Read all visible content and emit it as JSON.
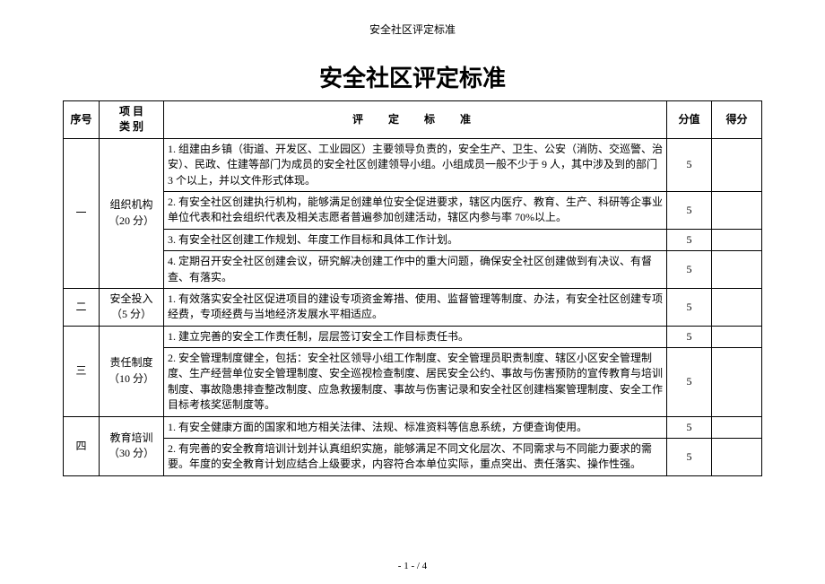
{
  "meta": {
    "small_header": "安全社区评定标准",
    "main_title": "安全社区评定标准",
    "footer": "- 1 -  / 4"
  },
  "columns": {
    "seq": "序号",
    "category_line1": "项 目",
    "category_line2": "类 别",
    "criteria": "评　定　标　准",
    "score": "分值",
    "got": "得分"
  },
  "sections": [
    {
      "seq": "一",
      "category": "组织机构（20 分）",
      "rows": [
        {
          "text": "1. 组建由乡镇（街道、开发区、工业园区）主要领导负责的，安全生产、卫生、公安（消防、交巡警、治安）、民政、住建等部门为成员的安全社区创建领导小组。小组成员一般不少于 9 人，其中涉及到的部门 3 个以上，并以文件形式体现。",
          "score": "5"
        },
        {
          "text": "2. 有安全社区创建执行机构，能够满足创建单位安全促进要求，辖区内医疗、教育、生产、科研等企事业单位代表和社会组织代表及相关志愿者普遍参加创建活动，辖区内参与率 70%以上。",
          "score": "5"
        },
        {
          "text": "3. 有安全社区创建工作规划、年度工作目标和具体工作计划。",
          "score": "5"
        },
        {
          "text": "4. 定期召开安全社区创建会议，研究解决创建工作中的重大问题，确保安全社区创建做到有决议、有督查、有落实。",
          "score": "5"
        }
      ]
    },
    {
      "seq": "二",
      "category": "安全投入（5 分）",
      "rows": [
        {
          "text": "1. 有效落实安全社区促进项目的建设专项资金筹措、使用、监督管理等制度、办法，有安全社区创建专项经费，专项经费与当地经济发展水平相适应。",
          "score": "5"
        }
      ]
    },
    {
      "seq": "三",
      "category": "责任制度（10 分）",
      "rows": [
        {
          "text": "1. 建立完善的安全工作责任制，层层签订安全工作目标责任书。",
          "score": "5"
        },
        {
          "text": "2. 安全管理制度健全，包括：安全社区领导小组工作制度、安全管理员职责制度、辖区小区安全管理制度、生产经营单位安全管理制度、安全巡视检查制度、居民安全公约、事故与伤害预防的宣传教育与培训制度、事故隐患排查整改制度、应急救援制度、事故与伤害记录和安全社区创建档案管理制度、安全工作目标考核奖惩制度等。",
          "score": "5"
        }
      ]
    },
    {
      "seq": "四",
      "category": "教育培训（30 分）",
      "rows": [
        {
          "text": "1. 有安全健康方面的国家和地方相关法律、法规、标准资料等信息系统，方便查询使用。",
          "score": "5"
        },
        {
          "text": "2. 有完善的安全教育培训计划并认真组织实施，能够满足不同文化层次、不同需求与不同能力要求的需要。年度的安全教育计划应结合上级要求，内容符合本单位实际，重点突出、责任落实、操作性强。",
          "score": "5"
        }
      ]
    }
  ]
}
